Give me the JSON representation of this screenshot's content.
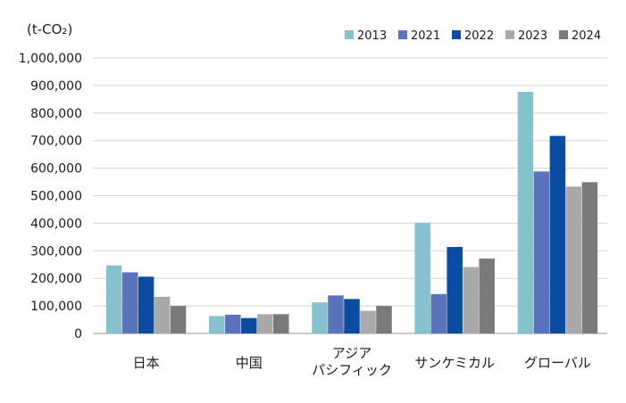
{
  "chart_data": {
    "type": "bar",
    "unit_label": "(t-CO₂)",
    "categories": [
      "日本",
      "中国",
      "アジア\nパシフィック",
      "サンケミカル",
      "グローバル"
    ],
    "series": [
      {
        "name": "2013",
        "color": "#86C2CD",
        "values": [
          247000,
          63000,
          113000,
          402000,
          877000
        ]
      },
      {
        "name": "2021",
        "color": "#5B72BD",
        "values": [
          222000,
          68000,
          138000,
          143000,
          588000
        ]
      },
      {
        "name": "2022",
        "color": "#0B4BA0",
        "values": [
          206000,
          56000,
          125000,
          314000,
          717000
        ]
      },
      {
        "name": "2023",
        "color": "#A9A9A9",
        "values": [
          133000,
          70000,
          82000,
          241000,
          533000
        ]
      },
      {
        "name": "2024",
        "color": "#7A7A7A",
        "values": [
          100000,
          70000,
          100000,
          272000,
          549000
        ]
      }
    ],
    "yticks": [
      "0",
      "100,000",
      "200,000",
      "300,000",
      "400,000",
      "500,000",
      "600,000",
      "700,000",
      "800,000",
      "900,000",
      "1,000,000"
    ],
    "ylim": [
      0,
      1000000
    ],
    "grid": true,
    "legend_position": "top-right",
    "xlabel": "",
    "ylabel": ""
  }
}
